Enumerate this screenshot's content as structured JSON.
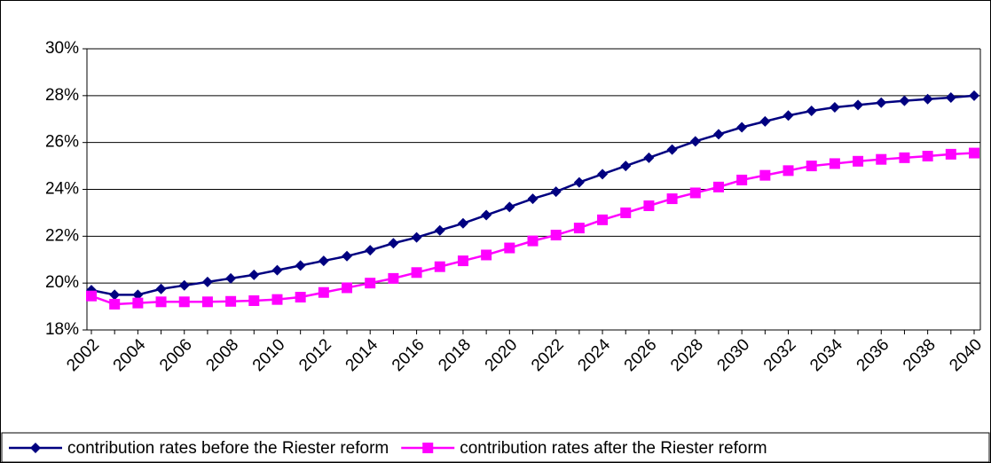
{
  "chart_data": {
    "type": "line",
    "categories": [
      "2002",
      null,
      "2004",
      null,
      "2006",
      null,
      "2008",
      null,
      "2010",
      null,
      "2012",
      null,
      "2014",
      null,
      "2016",
      null,
      "2018",
      null,
      "2020",
      null,
      "2022",
      null,
      "2024",
      null,
      "2026",
      null,
      "2028",
      null,
      "2030",
      null,
      "2032",
      null,
      "2034",
      null,
      "2036",
      null,
      "2038",
      null,
      "2040"
    ],
    "series": [
      {
        "name": "contribution rates before the Riester reform",
        "color": "#000080",
        "marker": "diamond",
        "values": [
          19.7,
          19.5,
          19.5,
          19.75,
          19.9,
          20.05,
          20.2,
          20.35,
          20.55,
          20.75,
          20.95,
          21.15,
          21.4,
          21.7,
          21.95,
          22.25,
          22.55,
          22.9,
          23.25,
          23.6,
          23.9,
          24.3,
          24.65,
          25.0,
          25.35,
          25.7,
          26.05,
          26.35,
          26.65,
          26.9,
          27.15,
          27.35,
          27.5,
          27.6,
          27.7,
          27.78,
          27.85,
          27.92,
          28.0
        ]
      },
      {
        "name": "contribution rates after the Riester reform",
        "color": "#ff00ff",
        "marker": "square",
        "values": [
          19.45,
          19.1,
          19.15,
          19.2,
          19.2,
          19.2,
          19.22,
          19.25,
          19.3,
          19.4,
          19.6,
          19.8,
          20.0,
          20.2,
          20.45,
          20.7,
          20.95,
          21.2,
          21.5,
          21.8,
          22.05,
          22.35,
          22.7,
          23.0,
          23.3,
          23.6,
          23.85,
          24.1,
          24.4,
          24.6,
          24.8,
          25.0,
          25.1,
          25.2,
          25.28,
          25.35,
          25.42,
          25.5,
          25.55
        ]
      }
    ],
    "ylim": [
      18,
      30
    ],
    "yticks": [
      {
        "value": 18,
        "label": "18%"
      },
      {
        "value": 20,
        "label": "20%"
      },
      {
        "value": 22,
        "label": "22%"
      },
      {
        "value": 24,
        "label": "24%"
      },
      {
        "value": 26,
        "label": "26%"
      },
      {
        "value": 28,
        "label": "28%"
      },
      {
        "value": 30,
        "label": "30%"
      }
    ],
    "grid": true,
    "legend": "bottom"
  }
}
